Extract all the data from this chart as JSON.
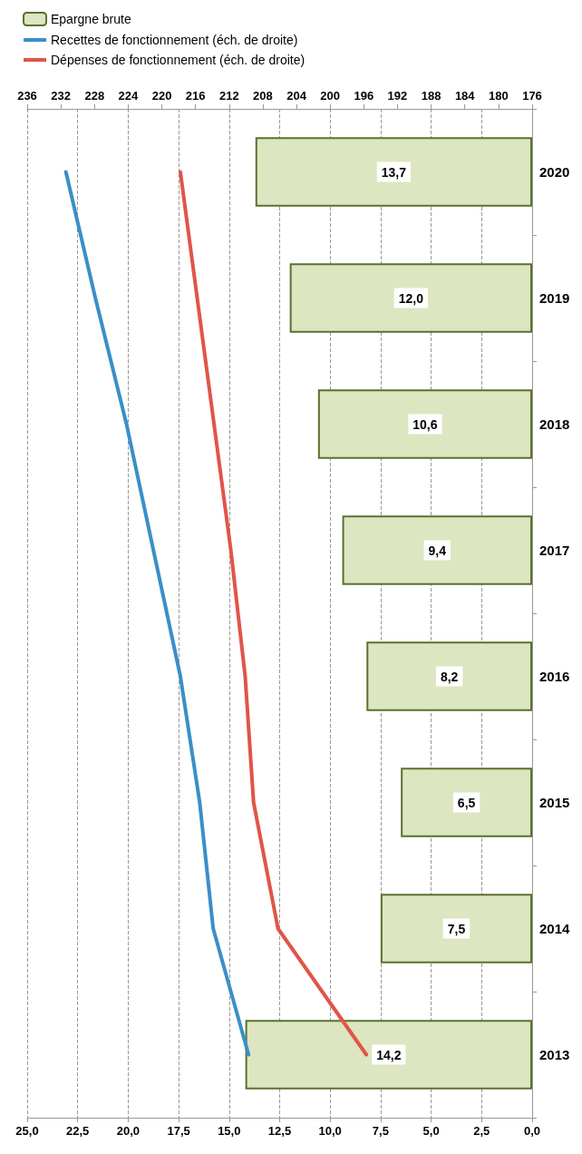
{
  "chart_data": {
    "type": "bar",
    "orientation": "horizontal",
    "categories": [
      "2020",
      "2019",
      "2018",
      "2017",
      "2016",
      "2015",
      "2014",
      "2013"
    ],
    "series": [
      {
        "name": "Epargne brute",
        "color": "#dce6c0",
        "values": [
          13.7,
          12.0,
          10.6,
          9.4,
          8.2,
          6.5,
          7.5,
          14.2
        ],
        "value_labels": [
          "13,7",
          "12,0",
          "10,6",
          "9,4",
          "8,2",
          "6,5",
          "7,5",
          "14,2"
        ]
      },
      {
        "name": "Recettes de fonctionnement (éch. de droite)",
        "type": "line",
        "axis": "x2",
        "color": "#3a8fc8",
        "values": [
          231.4,
          227.9,
          224.2,
          221.0,
          217.8,
          215.5,
          213.9,
          209.7
        ]
      },
      {
        "name": "Dépenses de fonctionnement (éch. de droite)",
        "type": "line",
        "axis": "x2",
        "color": "#e0554a",
        "values": [
          217.8,
          215.8,
          213.8,
          211.8,
          210.1,
          209.1,
          206.2,
          195.7
        ]
      }
    ],
    "xlim": [
      25,
      0
    ],
    "xticks": [
      {
        "value": 25,
        "label": "25,0"
      },
      {
        "value": 22.5,
        "label": "22,5"
      },
      {
        "value": 20,
        "label": "20,0"
      },
      {
        "value": 17.5,
        "label": "17,5"
      },
      {
        "value": 15,
        "label": "15,0"
      },
      {
        "value": 12.5,
        "label": "12,5"
      },
      {
        "value": 10,
        "label": "10,0"
      },
      {
        "value": 7.5,
        "label": "7,5"
      },
      {
        "value": 5,
        "label": "5,0"
      },
      {
        "value": 2.5,
        "label": "2,5"
      },
      {
        "value": 0,
        "label": "0,0"
      }
    ],
    "x2lim": [
      236,
      176
    ],
    "x2ticks": [
      236,
      232,
      228,
      224,
      220,
      216,
      212,
      208,
      204,
      200,
      196,
      192,
      188,
      184,
      180,
      176
    ],
    "grid": "x",
    "legend": "top",
    "marker": "none",
    "line_style": "solid"
  }
}
